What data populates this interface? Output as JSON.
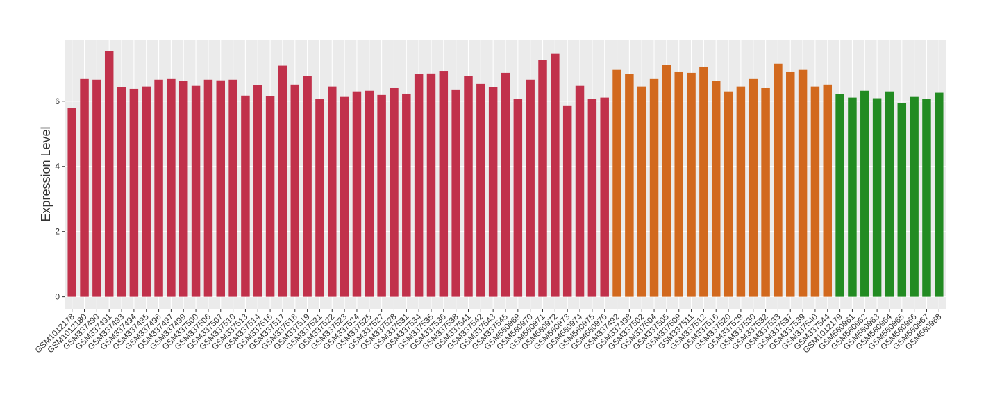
{
  "chart_data": {
    "type": "bar",
    "y_label": "Expression Level",
    "categories": [
      "GSM1012178",
      "GSM1012180",
      "GSM337490",
      "GSM337491",
      "GSM337493",
      "GSM337494",
      "GSM337495",
      "GSM337496",
      "GSM337497",
      "GSM337499",
      "GSM337500",
      "GSM337506",
      "GSM337507",
      "GSM337510",
      "GSM337513",
      "GSM337514",
      "GSM337515",
      "GSM337517",
      "GSM337518",
      "GSM337519",
      "GSM337521",
      "GSM337522",
      "GSM337523",
      "GSM337524",
      "GSM337525",
      "GSM337527",
      "GSM337528",
      "GSM337531",
      "GSM337534",
      "GSM337535",
      "GSM337536",
      "GSM337538",
      "GSM337541",
      "GSM337542",
      "GSM337543",
      "GSM337545",
      "GSM560969",
      "GSM560970",
      "GSM560971",
      "GSM560972",
      "GSM560973",
      "GSM560974",
      "GSM560975",
      "GSM560976",
      "GSM337492",
      "GSM337498",
      "GSM337502",
      "GSM337504",
      "GSM337505",
      "GSM337509",
      "GSM337511",
      "GSM337512",
      "GSM337516",
      "GSM337520",
      "GSM337529",
      "GSM337530",
      "GSM337532",
      "GSM337533",
      "GSM337537",
      "GSM337539",
      "GSM337540",
      "GSM337544",
      "GSM1012179",
      "GSM560961",
      "GSM560962",
      "GSM560963",
      "GSM560964",
      "GSM560965",
      "GSM560966",
      "GSM560967",
      "GSM560968"
    ],
    "values": [
      5.79,
      6.68,
      6.66,
      7.53,
      6.43,
      6.38,
      6.45,
      6.66,
      6.68,
      6.62,
      6.47,
      6.66,
      6.64,
      6.66,
      6.17,
      6.49,
      6.15,
      7.09,
      6.51,
      6.77,
      6.06,
      6.45,
      6.13,
      6.3,
      6.32,
      6.19,
      6.4,
      6.23,
      6.83,
      6.85,
      6.91,
      6.36,
      6.77,
      6.53,
      6.43,
      6.87,
      6.06,
      6.66,
      7.26,
      7.45,
      5.85,
      6.47,
      6.06,
      6.11,
      6.96,
      6.83,
      6.45,
      6.68,
      7.11,
      6.89,
      6.87,
      7.06,
      6.62,
      6.3,
      6.45,
      6.68,
      6.4,
      7.15,
      6.89,
      6.96,
      6.45,
      6.51,
      6.21,
      6.11,
      6.32,
      6.09,
      6.3,
      5.94,
      6.13,
      6.06,
      6.26
    ],
    "colors": [
      "#c1314b",
      "#c1314b",
      "#c1314b",
      "#c1314b",
      "#c1314b",
      "#c1314b",
      "#c1314b",
      "#c1314b",
      "#c1314b",
      "#c1314b",
      "#c1314b",
      "#c1314b",
      "#c1314b",
      "#c1314b",
      "#c1314b",
      "#c1314b",
      "#c1314b",
      "#c1314b",
      "#c1314b",
      "#c1314b",
      "#c1314b",
      "#c1314b",
      "#c1314b",
      "#c1314b",
      "#c1314b",
      "#c1314b",
      "#c1314b",
      "#c1314b",
      "#c1314b",
      "#c1314b",
      "#c1314b",
      "#c1314b",
      "#c1314b",
      "#c1314b",
      "#c1314b",
      "#c1314b",
      "#c1314b",
      "#c1314b",
      "#c1314b",
      "#c1314b",
      "#c1314b",
      "#c1314b",
      "#c1314b",
      "#c1314b",
      "#d2691e",
      "#d2691e",
      "#d2691e",
      "#d2691e",
      "#d2691e",
      "#d2691e",
      "#d2691e",
      "#d2691e",
      "#d2691e",
      "#d2691e",
      "#d2691e",
      "#d2691e",
      "#d2691e",
      "#d2691e",
      "#d2691e",
      "#d2691e",
      "#d2691e",
      "#d2691e",
      "#228b22",
      "#228b22",
      "#228b22",
      "#228b22",
      "#228b22",
      "#228b22",
      "#228b22",
      "#228b22",
      "#228b22"
    ],
    "ylim": [
      -0.37,
      7.89
    ],
    "yticks": [
      0,
      2,
      4,
      6
    ],
    "grid": true
  }
}
